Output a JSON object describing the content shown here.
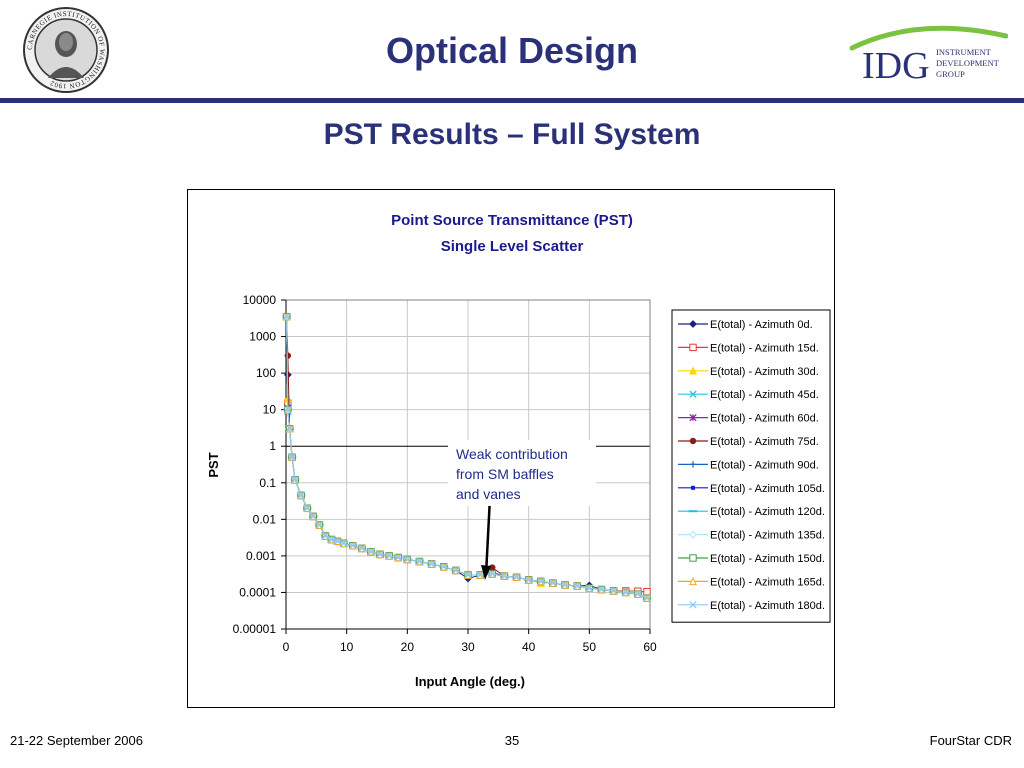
{
  "slide": {
    "title": "Optical Design",
    "subtitle": "PST Results – Full System",
    "seal_text": "CARNEGIE INSTITUTION OF WASHINGTON 1902",
    "logo": {
      "mark": "IDG",
      "line1": "INSTRUMENT",
      "line2": "DEVELOPMENT",
      "line3": "GROUP"
    },
    "annotation": [
      "Weak contribution",
      "from SM baffles",
      "and vanes"
    ],
    "footer": {
      "date": "21-22 September 2006",
      "page": "35",
      "right": "FourStar CDR"
    },
    "colors": {
      "brand": "#2b3178",
      "annotation": "#1f2d8a",
      "logo_arc": "#7cc242",
      "logo_text": "#2b3178"
    }
  },
  "chart_data": {
    "type": "scatter",
    "title": "Point Source Transmittance (PST)",
    "subtitle": "Single Level Scatter",
    "xlabel": "Input Angle (deg.)",
    "ylabel": "PST",
    "xlim": [
      0,
      60
    ],
    "ylim": [
      1e-05,
      10000
    ],
    "yscale": "log",
    "x_ticks": [
      "0",
      "10",
      "20",
      "30",
      "40",
      "50",
      "60"
    ],
    "y_ticks": [
      "10000",
      "1000",
      "100",
      "10",
      "1",
      "0.1",
      "0.01",
      "0.001",
      "0.0001",
      "0.00001"
    ],
    "grid": true,
    "legend_position": "right",
    "base_x": [
      0.1,
      0.3,
      0.6,
      1,
      1.5,
      2.5,
      3.5,
      4.5,
      5.5,
      6.5,
      7.5,
      8.5,
      9.5,
      11,
      12.5,
      14,
      15.5,
      17,
      18.5,
      20,
      22,
      24,
      26,
      28,
      30,
      32,
      34,
      36,
      38,
      40,
      42,
      44,
      46,
      48,
      50,
      52,
      54,
      56,
      58,
      59.5
    ],
    "base_y": [
      3500,
      10,
      3,
      0.5,
      0.12,
      0.045,
      0.02,
      0.012,
      0.007,
      0.0035,
      0.0028,
      0.0025,
      0.0022,
      0.0019,
      0.0016,
      0.0013,
      0.0011,
      0.001,
      0.0009,
      0.0008,
      0.0007,
      0.0006,
      0.0005,
      0.0004,
      0.0003,
      0.0003,
      0.00032,
      0.00028,
      0.00026,
      0.00022,
      0.0002,
      0.00018,
      0.00016,
      0.00015,
      0.00013,
      0.00012,
      0.00011,
      0.0001,
      9e-05,
      7e-05
    ],
    "series": [
      {
        "name": "E(total) - Azimuth 0d.",
        "color": "#1a237e",
        "marker": "diamond",
        "factors": [
          1,
          9,
          1,
          1,
          1,
          1,
          1,
          1,
          1,
          1,
          1,
          1,
          1,
          1,
          1,
          1,
          1,
          1,
          1,
          1,
          1,
          1,
          1,
          1,
          0.8,
          1,
          1.1,
          1,
          1,
          1,
          1,
          1,
          1,
          1,
          1.2,
          1,
          1,
          1,
          1,
          1
        ]
      },
      {
        "name": "E(total) - Azimuth 15d.",
        "color": "#e53935",
        "marker": "square-open",
        "factors": [
          1,
          1.5,
          1,
          1,
          1,
          1,
          1,
          1,
          1,
          1,
          1,
          1,
          1,
          1,
          1,
          1,
          1,
          1,
          1,
          1,
          1,
          1,
          1,
          1,
          1,
          1,
          1,
          1,
          1,
          1,
          1,
          1,
          1,
          1,
          1,
          1,
          1,
          1.1,
          1.2,
          1.5
        ]
      },
      {
        "name": "E(total) - Azimuth 30d.",
        "color": "#ffd600",
        "marker": "triangle",
        "factors": [
          1,
          2,
          1,
          1,
          1,
          1,
          1,
          1,
          1,
          1,
          1,
          1,
          1,
          1,
          1,
          1,
          1,
          1,
          1,
          1,
          1,
          1,
          1,
          1,
          1,
          1,
          1,
          1,
          1,
          1,
          0.9,
          1,
          1,
          1,
          1,
          1,
          1,
          1,
          1,
          1
        ]
      },
      {
        "name": "E(total) - Azimuth 45d.",
        "color": "#26c6da",
        "marker": "x",
        "factors": [
          1,
          0.9,
          1,
          1,
          1,
          1,
          1,
          1,
          1,
          1,
          1,
          1,
          1,
          1,
          1,
          1,
          1,
          1,
          1,
          1,
          1,
          1,
          1,
          1,
          1,
          1,
          1,
          1,
          1,
          1,
          1,
          1,
          1,
          1,
          1,
          1,
          1,
          1,
          1,
          1
        ]
      },
      {
        "name": "E(total) - Azimuth 60d.",
        "color": "#8e24aa",
        "marker": "star",
        "factors": [
          1,
          1.1,
          1,
          1,
          1,
          1,
          1,
          1,
          1,
          1,
          1,
          1,
          1,
          1,
          1,
          1,
          1,
          1,
          1,
          1,
          1,
          1,
          1,
          1,
          1,
          1,
          1,
          1,
          1,
          1,
          1,
          1,
          1,
          1,
          1,
          1,
          1,
          1,
          1,
          1
        ]
      },
      {
        "name": "E(total) - Azimuth 75d.",
        "color": "#8b1a1a",
        "marker": "circle",
        "factors": [
          1,
          30,
          1,
          1,
          1,
          1,
          1,
          1,
          1,
          1,
          1,
          1,
          1,
          1,
          1,
          1,
          1,
          1,
          1,
          1,
          1,
          1,
          1,
          1,
          1,
          1,
          1.5,
          1,
          1,
          1,
          1,
          1,
          1,
          1,
          1,
          1,
          1,
          1,
          1,
          1
        ]
      },
      {
        "name": "E(total) - Azimuth 90d.",
        "color": "#1565c0",
        "marker": "plus",
        "factors": [
          1,
          1,
          1,
          1,
          1,
          1,
          1,
          1,
          1,
          1,
          1,
          1,
          1,
          1,
          1,
          1,
          1,
          1,
          1,
          1,
          1,
          1,
          1,
          1,
          1,
          1,
          1,
          1,
          1,
          1,
          1,
          1,
          1,
          1,
          1,
          1,
          1,
          1,
          1,
          1
        ]
      },
      {
        "name": "E(total) - Azimuth 105d.",
        "color": "#0d1fc9",
        "marker": "small-square",
        "factors": [
          1,
          1,
          1,
          1,
          1,
          1,
          1,
          1,
          1,
          1,
          1,
          1,
          1,
          1,
          1,
          1,
          1,
          1,
          1,
          1,
          1,
          1,
          1,
          1,
          1,
          1,
          1,
          1,
          1,
          1,
          1,
          1,
          1,
          1,
          1,
          1,
          1,
          1,
          1,
          1
        ]
      },
      {
        "name": "E(total) - Azimuth 120d.",
        "color": "#29b6f6",
        "marker": "dash",
        "factors": [
          1,
          1,
          1,
          1,
          1,
          1,
          1,
          1,
          1,
          1,
          1,
          1,
          1,
          1,
          1,
          1,
          1,
          1,
          1,
          1,
          1,
          1,
          1,
          1,
          1,
          1,
          1,
          1,
          1,
          1,
          1,
          1,
          1,
          1,
          1,
          1,
          1,
          1,
          1,
          1
        ]
      },
      {
        "name": "E(total) - Azimuth 135d.",
        "color": "#b3e5fc",
        "marker": "diamond-open",
        "factors": [
          1,
          1,
          1,
          1,
          1,
          1,
          1,
          1,
          1,
          1,
          1,
          1,
          1,
          1,
          1,
          1,
          1,
          1,
          1,
          1,
          1,
          1,
          1,
          1,
          1,
          1,
          1,
          1,
          1,
          1,
          1,
          1,
          1,
          1,
          1,
          1,
          1,
          1,
          1,
          1
        ]
      },
      {
        "name": "E(total) - Azimuth 150d.",
        "color": "#43a047",
        "marker": "square-open",
        "factors": [
          1,
          1,
          1,
          1,
          1,
          1,
          1,
          1,
          1,
          1,
          1,
          1,
          1,
          1,
          1,
          1,
          1,
          1,
          1,
          1,
          1,
          1,
          1,
          1,
          1,
          1,
          1,
          1,
          1,
          1,
          1,
          1,
          1,
          1,
          1,
          1,
          1,
          1,
          1,
          1
        ]
      },
      {
        "name": "E(total) - Azimuth 165d.",
        "color": "#f5a623",
        "marker": "triangle-open",
        "factors": [
          1,
          1,
          1,
          1,
          1,
          1,
          1,
          1,
          1,
          1,
          1,
          1,
          1,
          1,
          1,
          1,
          1,
          1,
          1,
          1,
          1,
          1,
          1,
          1,
          1,
          1,
          1,
          1,
          1,
          1,
          1,
          1,
          1,
          1,
          1,
          1,
          1,
          1,
          1,
          1
        ]
      },
      {
        "name": "E(total) - Azimuth 180d.",
        "color": "#90caf9",
        "marker": "x",
        "factors": [
          1,
          1,
          1,
          1,
          1,
          1,
          1,
          1,
          1,
          1,
          1,
          1,
          1,
          1,
          1,
          1,
          1,
          1,
          1,
          1,
          1,
          1,
          1,
          1,
          1,
          1,
          1,
          1,
          1,
          1,
          1,
          1,
          1,
          1,
          1,
          1,
          1,
          1,
          1,
          1
        ]
      }
    ]
  }
}
